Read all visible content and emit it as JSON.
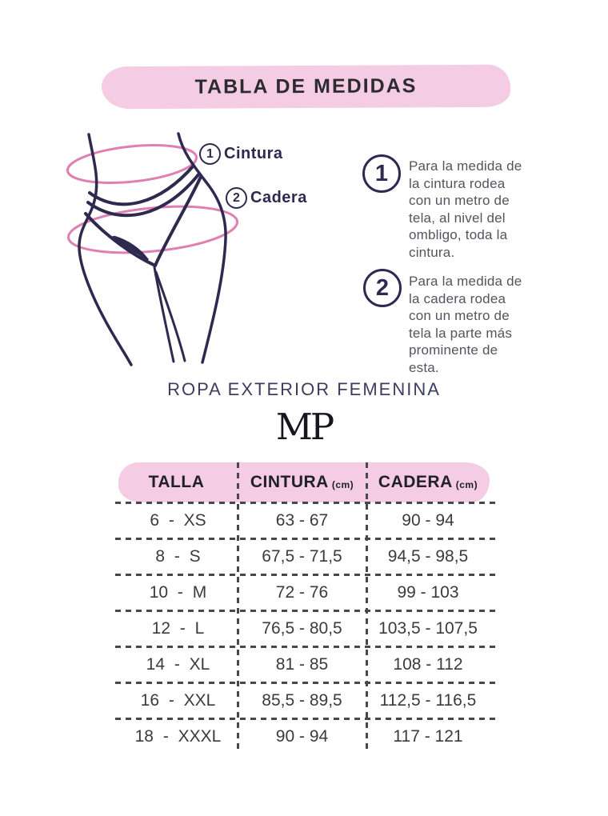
{
  "page": {
    "title": "TABLA DE MEDIDAS"
  },
  "diagram": {
    "labels": [
      {
        "number": "1",
        "label": "Cintura"
      },
      {
        "number": "2",
        "label": "Cadera"
      }
    ]
  },
  "instructions": [
    {
      "number": "1",
      "lines": [
        "Para la medida de",
        "la cintura rodea",
        "con un metro de",
        "tela, al nivel del",
        "ombligo, toda la",
        "cintura."
      ]
    },
    {
      "number": "2",
      "lines": [
        "Para la medida de",
        "la cadera rodea",
        "con un metro de",
        "tela la parte más",
        "prominente de",
        "esta."
      ]
    }
  ],
  "section": {
    "heading": "ROPA EXTERIOR FEMENINA",
    "brand": "MP"
  },
  "table": {
    "columns": [
      {
        "label": "TALLA",
        "unit": ""
      },
      {
        "label": "CINTURA",
        "unit": "(cm)"
      },
      {
        "label": "CADERA",
        "unit": "(cm)"
      }
    ],
    "rows": [
      {
        "talla": "6 - XS",
        "cintura": "63 - 67",
        "cadera": "90 - 94"
      },
      {
        "talla": "8 - S",
        "cintura": "67,5 - 71,5",
        "cadera": "94,5 - 98,5"
      },
      {
        "talla": "10 - M",
        "cintura": "72 - 76",
        "cadera": "99 - 103"
      },
      {
        "talla": "12 - L",
        "cintura": "76,5 - 80,5",
        "cadera": "103,5 - 107,5"
      },
      {
        "talla": "14 - XL",
        "cintura": "81 - 85",
        "cadera": "108 - 112"
      },
      {
        "talla": "16 - XXL",
        "cintura": "85,5 - 89,5",
        "cadera": "112,5 - 116,5"
      },
      {
        "talla": "18 - XXXL",
        "cintura": "90 - 94",
        "cadera": "117 - 121"
      }
    ]
  },
  "colors": {
    "navy": "#2e2a4f",
    "pink_blob": "#f4cce3",
    "pink_measure_line": "#e07fb2",
    "dash_line": "#48484c"
  }
}
